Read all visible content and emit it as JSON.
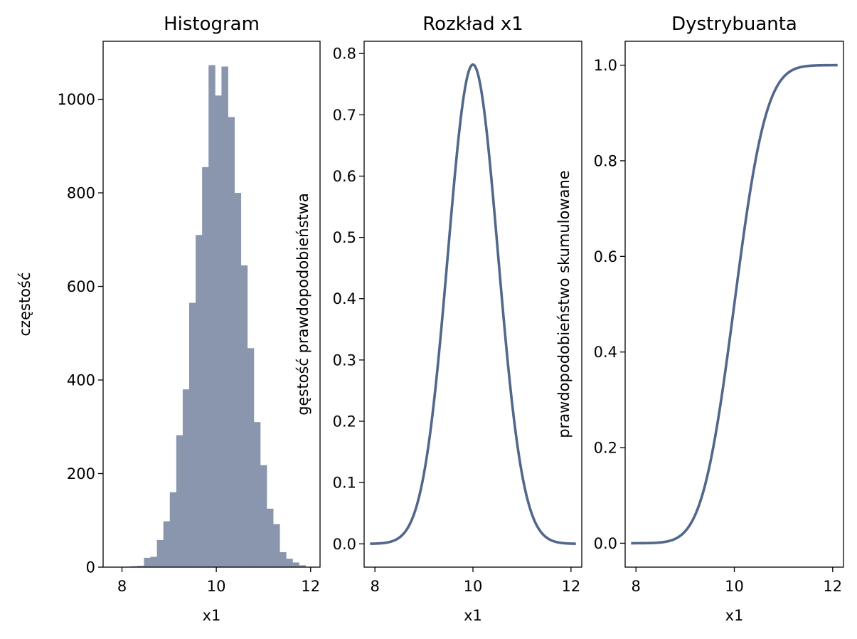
{
  "colors": {
    "bar": "#8996ad",
    "line": "#51678c",
    "axis": "#000000"
  },
  "chart_data": [
    {
      "type": "bar",
      "title": "Histogram",
      "xlabel": "x1",
      "ylabel": "częstość",
      "xlim": [
        7.6,
        12.2
      ],
      "ylim": [
        0,
        1124
      ],
      "xticks": [
        8,
        10,
        12
      ],
      "yticks": [
        0,
        200,
        400,
        600,
        800,
        1000
      ],
      "bin_width": 0.137,
      "bin_left_edges": [
        8.055,
        8.192,
        8.329,
        8.466,
        8.603,
        8.74,
        8.877,
        9.014,
        9.151,
        9.288,
        9.425,
        9.562,
        9.699,
        9.836,
        9.973,
        10.11,
        10.247,
        10.384,
        10.521,
        10.658,
        10.795,
        10.932,
        11.069,
        11.206,
        11.343,
        11.48,
        11.617,
        11.754
      ],
      "values": [
        1,
        2,
        3,
        20,
        22,
        58,
        98,
        160,
        282,
        380,
        565,
        710,
        855,
        1073,
        1008,
        1070,
        962,
        800,
        645,
        468,
        310,
        218,
        125,
        92,
        32,
        18,
        10,
        4
      ]
    },
    {
      "type": "line",
      "title": "Rozkład x1",
      "xlabel": "x1",
      "ylabel": "gęstość prawdopodobieństwa",
      "xlim": [
        7.78,
        12.22
      ],
      "ylim": [
        -0.038,
        0.82
      ],
      "xticks": [
        8,
        10,
        12
      ],
      "yticks": [
        0.0,
        0.1,
        0.2,
        0.3,
        0.4,
        0.5,
        0.6,
        0.7,
        0.8
      ],
      "x_range": [
        7.9,
        12.1
      ],
      "distribution": {
        "kind": "normal",
        "mean": 10.0,
        "std": 0.51
      },
      "peak": 0.782
    },
    {
      "type": "line",
      "title": "Dystrybuanta",
      "xlabel": "x1",
      "ylabel": "prawdopodobieństwo skumulowane",
      "xlim": [
        7.78,
        12.22
      ],
      "ylim": [
        -0.05,
        1.05
      ],
      "xticks": [
        8,
        10,
        12
      ],
      "yticks": [
        0.0,
        0.2,
        0.4,
        0.6,
        0.8,
        1.0
      ],
      "x_range": [
        7.9,
        12.1
      ],
      "distribution": {
        "kind": "normal_cdf",
        "mean": 10.0,
        "std": 0.51
      }
    }
  ]
}
